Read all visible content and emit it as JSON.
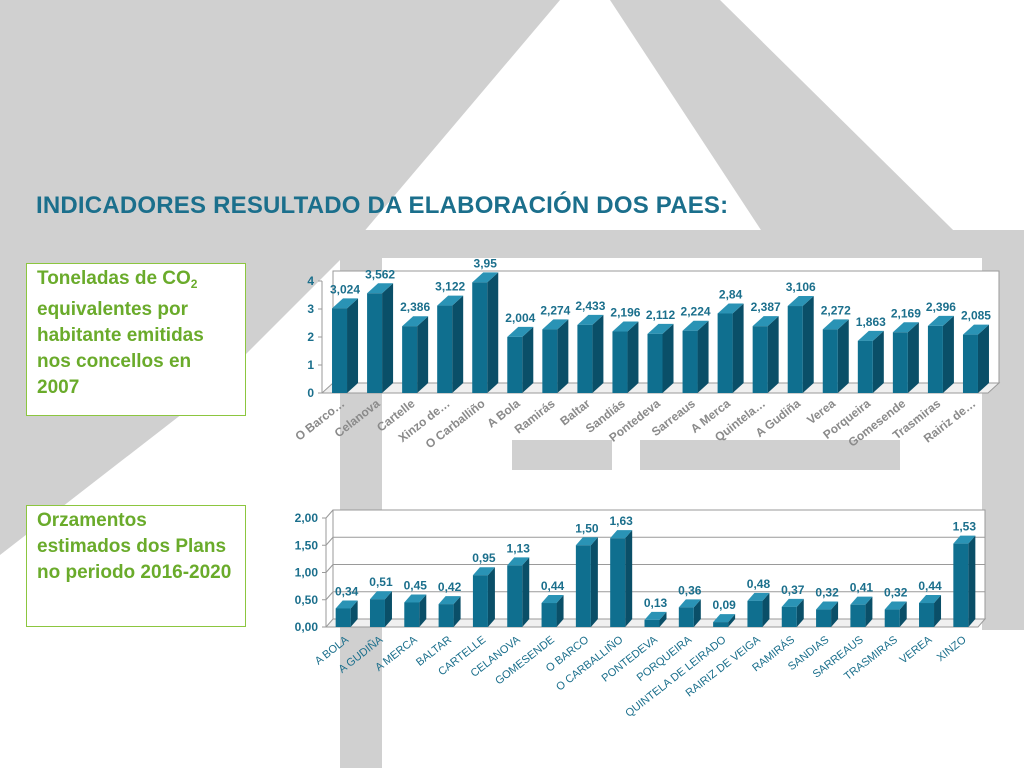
{
  "slide": {
    "title": "INDICADORES RESULTADO DA ELABORACIÓN DOS PAES:",
    "box1": {
      "text_before": "Toneladas de CO",
      "subscript": "2",
      "text_after": " equivalentes por habitante emitidas nos concellos en 2007"
    },
    "box2": {
      "text": "Orzamentos estimados dos Plans no periodo 2016-2020"
    }
  },
  "colors": {
    "bar_front": "#0f6f8f",
    "bar_top": "#2a93b5",
    "bar_side": "#0a4f68",
    "title": "#1b6f8c",
    "box_text": "#6aab2b",
    "label": "#1b6f8c",
    "bg_shape": "#cccccc"
  },
  "chart_data": [
    {
      "type": "bar",
      "categories": [
        "O Barco…",
        "Celanova",
        "Cartelle",
        "Xinzo de…",
        "O Carballiño",
        "A Bola",
        "Ramirás",
        "Baltar",
        "Sandiás",
        "Pontedeva",
        "Sarreaus",
        "A Merca",
        "Quintela…",
        "A Gudiña",
        "Verea",
        "Porqueira",
        "Gomesende",
        "Trasmiras",
        "Rairiz de…"
      ],
      "values": [
        3.024,
        3.562,
        2.386,
        3.122,
        3.95,
        2.004,
        2.274,
        2.433,
        2.196,
        2.112,
        2.224,
        2.84,
        2.387,
        3.106,
        2.272,
        1.863,
        2.169,
        2.396,
        2.085
      ],
      "data_labels": [
        "3,024",
        "3,562",
        "2,386",
        "3,122",
        "3,95",
        "2,004",
        "2,274",
        "2,433",
        "2,196",
        "2,112",
        "2,224",
        "2,84",
        "2,387",
        "3,106",
        "2,272",
        "1,863",
        "2,169",
        "2,396",
        "2,085"
      ],
      "yticks": [
        "0",
        "1",
        "2",
        "3",
        "4"
      ],
      "ylim": [
        0,
        4
      ],
      "grid": false
    },
    {
      "type": "bar",
      "categories": [
        "A BOLA",
        "A GUDIÑA",
        "A MERCA",
        "BALTAR",
        "CARTELLE",
        "CELANOVA",
        "GOMESENDE",
        "O BARCO",
        "O CARBALLIÑO",
        "PONTEDEVA",
        "PORQUEIRA",
        "QUINTELA DE LEIRADO",
        "RAIRIZ DE VEIGA",
        "RAMIRÁS",
        "SANDIAS",
        "SARREAUS",
        "TRASMIRAS",
        "VEREA",
        "XINZO"
      ],
      "values": [
        0.34,
        0.51,
        0.45,
        0.42,
        0.95,
        1.13,
        0.44,
        1.5,
        1.63,
        0.13,
        0.36,
        0.09,
        0.48,
        0.37,
        0.32,
        0.41,
        0.32,
        0.44,
        1.53
      ],
      "data_labels": [
        "0,34",
        "0,51",
        "0,45",
        "0,42",
        "0,95",
        "1,13",
        "0,44",
        "1,50",
        "1,63",
        "0,13",
        "0,36",
        "0,09",
        "0,48",
        "0,37",
        "0,32",
        "0,41",
        "0,32",
        "0,44",
        "1,53"
      ],
      "yticks": [
        "0,00",
        "0,50",
        "1,00",
        "1,50",
        "2,00"
      ],
      "ylim": [
        0,
        2
      ],
      "grid": true
    }
  ]
}
